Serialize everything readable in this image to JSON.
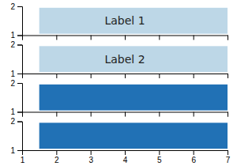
{
  "chart_data": [
    {
      "type": "bar",
      "orientation": "horizontal",
      "values": [
        5.5
      ],
      "left": [
        1.5
      ],
      "color": "#bdd7e7",
      "annotations": [
        "Label 1"
      ],
      "xlim": [
        1,
        7
      ],
      "xticks": [
        1,
        2,
        3,
        4,
        5,
        6,
        7
      ],
      "ylim": [
        1,
        2
      ],
      "yticks": [
        1,
        2
      ],
      "tick_labels": "y"
    },
    {
      "type": "bar",
      "orientation": "horizontal",
      "values": [
        5.5
      ],
      "left": [
        1.5
      ],
      "color": "#bdd7e7",
      "annotations": [
        "Label 2"
      ],
      "xlim": [
        1,
        7
      ],
      "xticks": [
        1,
        2,
        3,
        4,
        5,
        6,
        7
      ],
      "ylim": [
        1,
        2
      ],
      "yticks": [
        1,
        2
      ],
      "tick_labels": "y"
    },
    {
      "type": "bar",
      "orientation": "horizontal",
      "values": [
        5.5
      ],
      "left": [
        1.5
      ],
      "color": "#2171b5",
      "xlim": [
        1,
        7
      ],
      "xticks": [
        1,
        2,
        3,
        4,
        5,
        6,
        7
      ],
      "ylim": [
        1,
        2
      ],
      "yticks": [
        1,
        2
      ],
      "tick_labels": "y"
    },
    {
      "type": "bar",
      "orientation": "horizontal",
      "values": [
        5.5
      ],
      "left": [
        1.5
      ],
      "color": "#2171b5",
      "xlim": [
        1,
        7
      ],
      "xticks": [
        1,
        2,
        3,
        4,
        5,
        6,
        7
      ],
      "ylim": [
        1,
        2
      ],
      "yticks": [
        1,
        2
      ]
    }
  ]
}
